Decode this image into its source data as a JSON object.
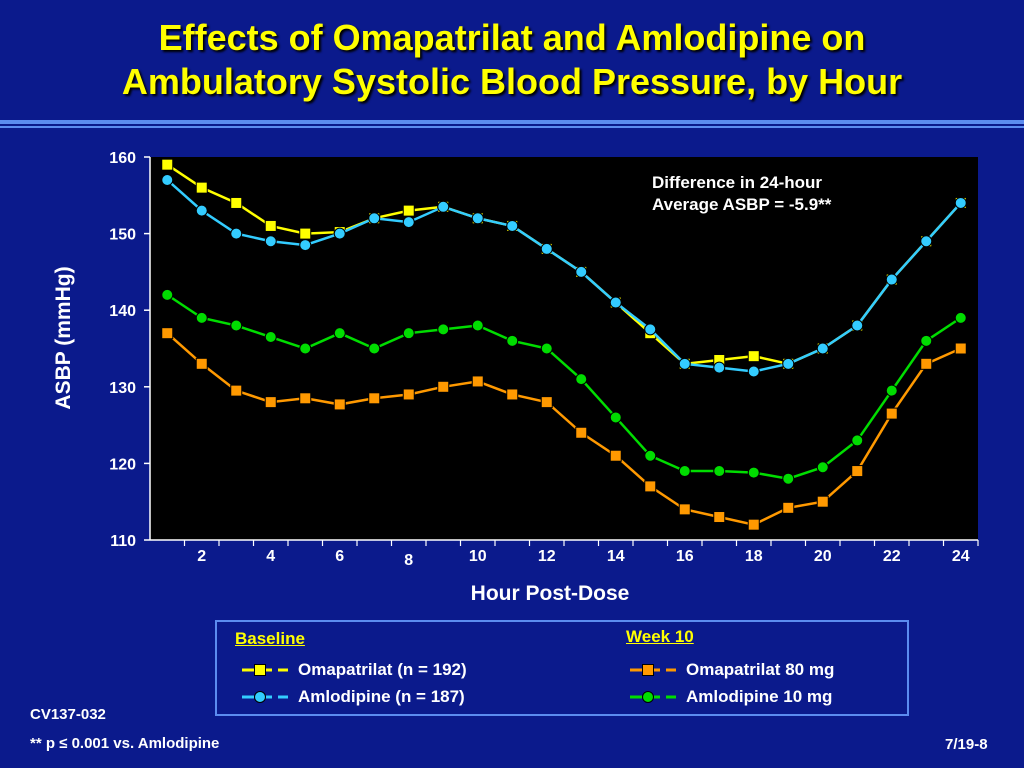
{
  "slide": {
    "title_line1": "Effects of Omapatrilat and Amlodipine on",
    "title_line2": "Ambulatory Systolic Blood Pressure, by Hour",
    "study_id": "CV137-032",
    "footnote": "** p ≤ 0.001 vs. Amlodipine",
    "slide_number": "7/19-8"
  },
  "legend": {
    "baseline_heading": "Baseline",
    "week10_heading": "Week 10",
    "items": [
      {
        "label": "Omapatrilat (n = 192)",
        "color": "#ffff00",
        "marker": "square"
      },
      {
        "label": "Amlodipine (n = 187)",
        "color": "#33ccff",
        "marker": "circle"
      },
      {
        "label": "Omapatrilat 80 mg",
        "color": "#ff9900",
        "marker": "square"
      },
      {
        "label": "Amlodipine 10 mg",
        "color": "#00dd00",
        "marker": "circle"
      }
    ]
  },
  "chart_data": {
    "type": "line",
    "title": "",
    "xlabel": "Hour Post-Dose",
    "ylabel": "ASBP (mmHg)",
    "xlim": [
      0.5,
      24.5
    ],
    "ylim": [
      110,
      160
    ],
    "yticks": [
      110,
      120,
      130,
      140,
      150,
      160
    ],
    "xtick_labels": [
      "2",
      "4",
      "6",
      "8",
      "10",
      "12",
      "14",
      "16",
      "18",
      "20",
      "22",
      "24"
    ],
    "x": [
      1,
      2,
      3,
      4,
      5,
      6,
      7,
      8,
      9,
      10,
      11,
      12,
      13,
      14,
      15,
      16,
      17,
      18,
      19,
      20,
      21,
      22,
      23,
      24
    ],
    "annotation": [
      "Difference in 24-hour",
      "Average ASBP = -5.9**"
    ],
    "plot_background": "#000000",
    "grid": false,
    "series": [
      {
        "name": "Omapatrilat (n = 192)",
        "color": "#ffff00",
        "marker": "square",
        "values": [
          159,
          156,
          154,
          151,
          150,
          150.2,
          152,
          153,
          153.5,
          152,
          151,
          148,
          145,
          141,
          137,
          133,
          133.5,
          134,
          133,
          135,
          138,
          144,
          149,
          154
        ]
      },
      {
        "name": "Amlodipine (n = 187)",
        "color": "#33ccff",
        "marker": "circle",
        "values": [
          157,
          153,
          150,
          149,
          148.5,
          150,
          152,
          151.5,
          153.5,
          152,
          151,
          148,
          145,
          141,
          137.5,
          133,
          132.5,
          132,
          133,
          135,
          138,
          144,
          149,
          154
        ]
      },
      {
        "name": "Omapatrilat 80 mg",
        "color": "#ff9900",
        "marker": "square",
        "values": [
          137,
          133,
          129.5,
          128,
          128.5,
          127.7,
          128.5,
          129,
          130,
          130.7,
          129,
          128,
          124,
          121,
          117,
          114,
          113,
          112,
          114.2,
          115,
          119,
          126.5,
          133,
          135
        ]
      },
      {
        "name": "Amlodipine 10 mg",
        "color": "#00dd00",
        "marker": "circle",
        "values": [
          142,
          139,
          138,
          136.5,
          135,
          137,
          135,
          137,
          137.5,
          138,
          136,
          135,
          131,
          126,
          121,
          119,
          119,
          118.8,
          118,
          119.5,
          123,
          129.5,
          136,
          139
        ]
      }
    ]
  }
}
